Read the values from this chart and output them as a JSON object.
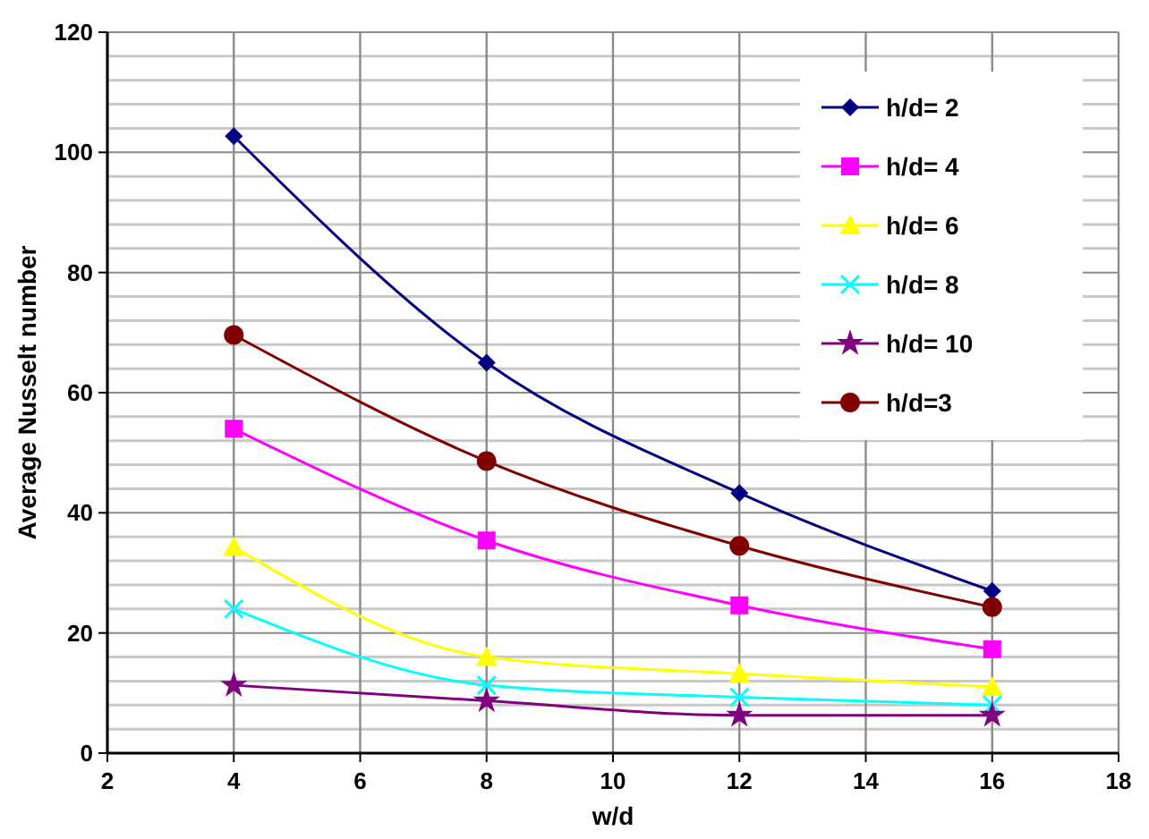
{
  "chart_data": {
    "type": "line",
    "xlabel": "w/d",
    "ylabel": "Average Nusselt number",
    "x": [
      4,
      8,
      12,
      16
    ],
    "series": [
      {
        "name": "h/d= 2",
        "color": "#000080",
        "marker": "diamond",
        "values": [
          102.7,
          65,
          43.3,
          27
        ]
      },
      {
        "name": "h/d= 4",
        "color": "#ff00ff",
        "marker": "square",
        "values": [
          54,
          35.4,
          24.6,
          17.3
        ]
      },
      {
        "name": "h/d= 6",
        "color": "#ffff00",
        "marker": "triangle",
        "values": [
          34.3,
          16,
          13.2,
          11
        ]
      },
      {
        "name": "h/d= 8",
        "color": "#00ffff",
        "marker": "cross",
        "values": [
          24,
          11.3,
          9.3,
          8
        ]
      },
      {
        "name": "h/d= 10",
        "color": "#800080",
        "marker": "star",
        "values": [
          11.3,
          8.7,
          6.3,
          6.3
        ]
      },
      {
        "name": "h/d=3",
        "color": "#800000",
        "marker": "circle",
        "values": [
          69.6,
          48.6,
          34.5,
          24.3
        ]
      }
    ],
    "xlim": [
      2,
      18
    ],
    "xticks": [
      2,
      4,
      6,
      8,
      10,
      12,
      14,
      16,
      18
    ],
    "ylim": [
      0,
      120
    ],
    "yticks": [
      0,
      {
        "value": 4,
        "label": null
      },
      {
        "value": 8,
        "label": null
      },
      {
        "value": 12,
        "label": null
      },
      {
        "value": 16,
        "label": null
      },
      20,
      {
        "value": 24,
        "label": null
      },
      {
        "value": 28,
        "label": null
      },
      {
        "value": 32,
        "label": null
      },
      {
        "value": 36,
        "label": null
      },
      40,
      {
        "value": 44,
        "label": null
      },
      {
        "value": 48,
        "label": null
      },
      {
        "value": 52,
        "label": null
      },
      {
        "value": 56,
        "label": null
      },
      60,
      {
        "value": 64,
        "label": null
      },
      {
        "value": 68,
        "label": null
      },
      {
        "value": 72,
        "label": null
      },
      {
        "value": 76,
        "label": null
      },
      80,
      {
        "value": 84,
        "label": null
      },
      {
        "value": 88,
        "label": null
      },
      {
        "value": 92,
        "label": null
      },
      {
        "value": 96,
        "label": null
      },
      100,
      {
        "value": 104,
        "label": null
      },
      {
        "value": 108,
        "label": null
      },
      {
        "value": 112,
        "label": null
      },
      {
        "value": 116,
        "label": null
      },
      120
    ],
    "grid": true,
    "legend": "top right",
    "line_style": "solid"
  }
}
